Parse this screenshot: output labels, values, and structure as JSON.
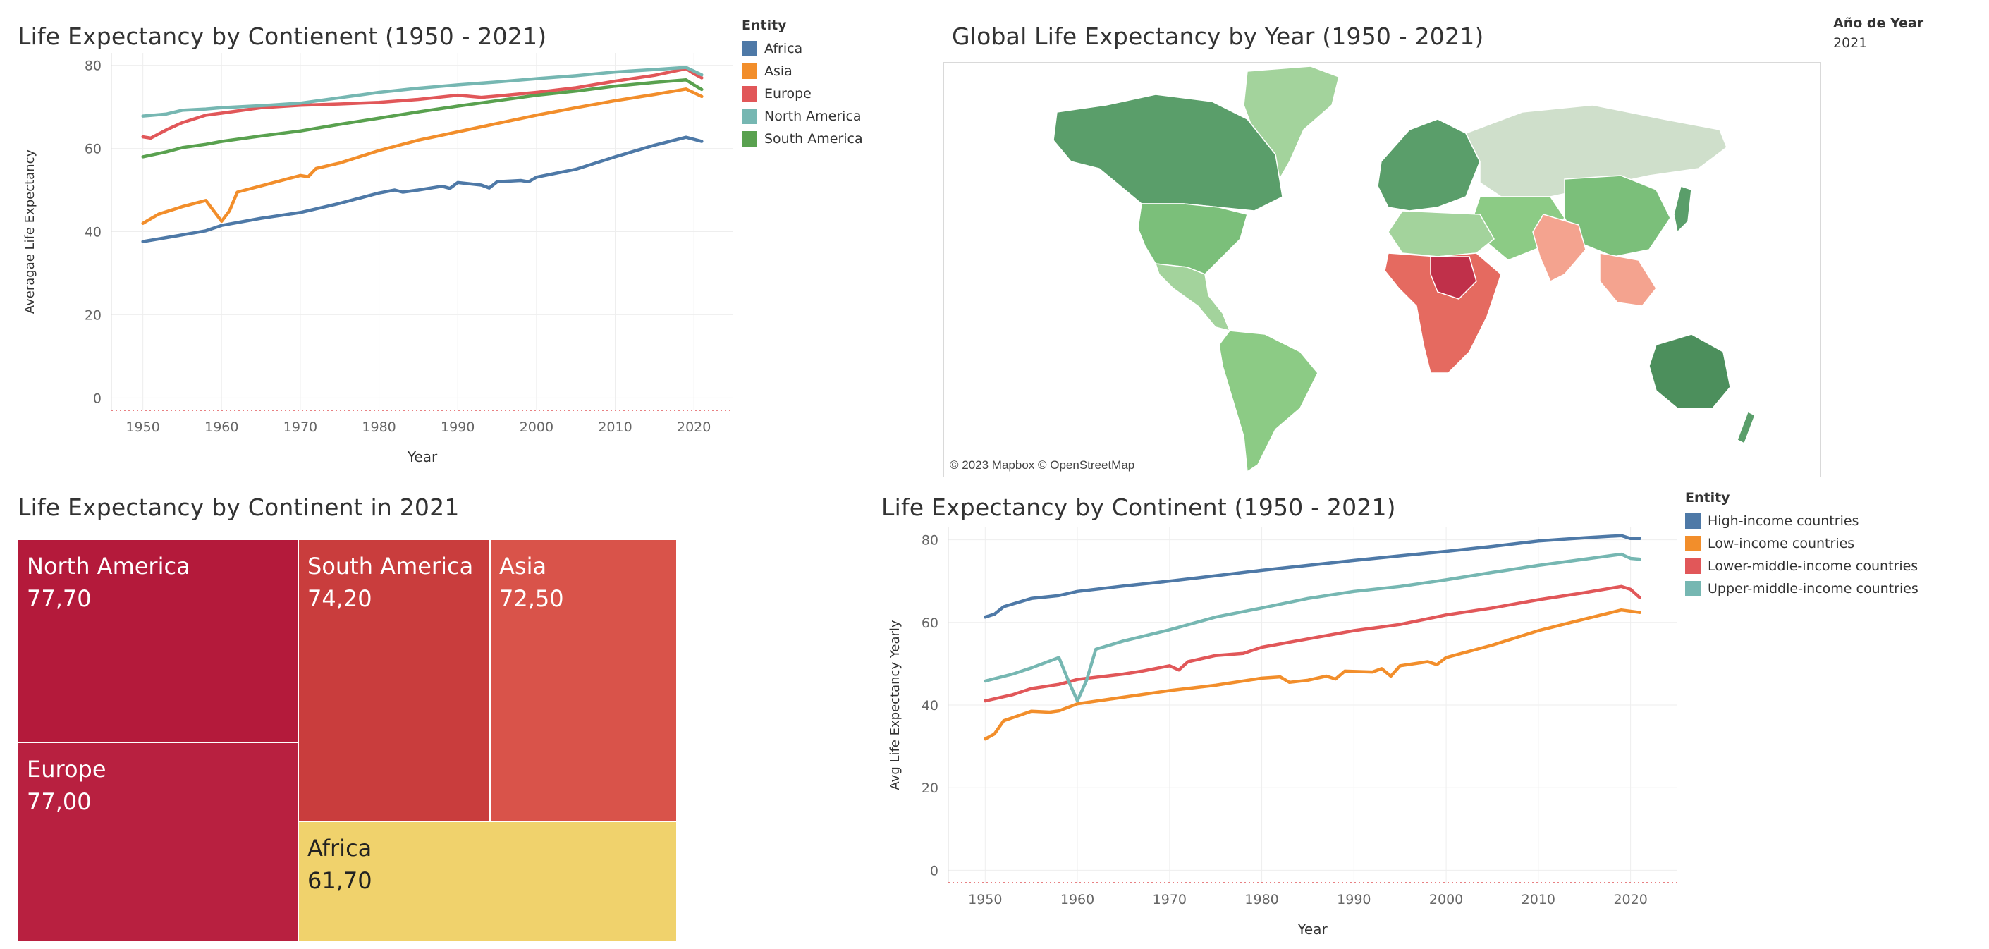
{
  "dashboard": {
    "filter": {
      "label": "Año de Year",
      "value": "2021"
    },
    "map": {
      "title": "Global Life Expectancy by Year (1950 - 2021)",
      "credit": "© 2023 Mapbox © OpenStreetMap"
    }
  },
  "colors": {
    "blue": "#4e79a7",
    "orange": "#f28e2b",
    "red": "#e15759",
    "teal": "#76b7b2",
    "green": "#59a14f",
    "treemap_dark": "#b41a3b",
    "treemap_mid": "#c93d3d",
    "treemap_light": "#d9534a",
    "treemap_yellow": "#f0d26c"
  },
  "chart_data": [
    {
      "id": "continent_lines",
      "type": "line",
      "title": "Life Expectancy by Contienent (1950 - 2021)",
      "xlabel": "Year",
      "ylabel": "Averagae Life Expectancy",
      "xlim": [
        1946,
        2025
      ],
      "ylim": [
        -3,
        83
      ],
      "x_ticks": [
        1950,
        1960,
        1970,
        1980,
        1990,
        2000,
        2010,
        2020
      ],
      "y_ticks": [
        0,
        20,
        40,
        60,
        80
      ],
      "grid": true,
      "legend_title": "Entity",
      "legend_position": "right",
      "series": [
        {
          "name": "Africa",
          "color": "#4e79a7",
          "points": [
            [
              1950,
              37.6
            ],
            [
              1955,
              39.2
            ],
            [
              1958,
              40.2
            ],
            [
              1960,
              41.5
            ],
            [
              1965,
              43.2
            ],
            [
              1970,
              44.6
            ],
            [
              1975,
              46.8
            ],
            [
              1980,
              49.3
            ],
            [
              1982,
              50.0
            ],
            [
              1983,
              49.5
            ],
            [
              1985,
              50.0
            ],
            [
              1988,
              50.9
            ],
            [
              1989,
              50.4
            ],
            [
              1990,
              51.8
            ],
            [
              1993,
              51.2
            ],
            [
              1994,
              50.5
            ],
            [
              1995,
              52.0
            ],
            [
              1998,
              52.3
            ],
            [
              1999,
              52.0
            ],
            [
              2000,
              53.1
            ],
            [
              2005,
              55.0
            ],
            [
              2010,
              58.0
            ],
            [
              2015,
              60.8
            ],
            [
              2019,
              62.7
            ],
            [
              2021,
              61.7
            ]
          ]
        },
        {
          "name": "Asia",
          "color": "#f28e2b",
          "points": [
            [
              1950,
              42.0
            ],
            [
              1952,
              44.2
            ],
            [
              1955,
              46.0
            ],
            [
              1958,
              47.5
            ],
            [
              1960,
              42.5
            ],
            [
              1961,
              45.0
            ],
            [
              1962,
              49.5
            ],
            [
              1965,
              51.0
            ],
            [
              1970,
              53.5
            ],
            [
              1971,
              53.2
            ],
            [
              1972,
              55.2
            ],
            [
              1975,
              56.5
            ],
            [
              1980,
              59.5
            ],
            [
              1985,
              62.0
            ],
            [
              1990,
              64.0
            ],
            [
              1995,
              66.0
            ],
            [
              2000,
              68.0
            ],
            [
              2005,
              69.8
            ],
            [
              2010,
              71.5
            ],
            [
              2015,
              73.0
            ],
            [
              2019,
              74.3
            ],
            [
              2021,
              72.5
            ]
          ]
        },
        {
          "name": "Europe",
          "color": "#e15759",
          "points": [
            [
              1950,
              62.8
            ],
            [
              1951,
              62.5
            ],
            [
              1953,
              64.5
            ],
            [
              1955,
              66.2
            ],
            [
              1958,
              68.0
            ],
            [
              1960,
              68.5
            ],
            [
              1965,
              69.8
            ],
            [
              1970,
              70.4
            ],
            [
              1975,
              70.7
            ],
            [
              1980,
              71.1
            ],
            [
              1985,
              71.8
            ],
            [
              1990,
              72.8
            ],
            [
              1993,
              72.3
            ],
            [
              1995,
              72.6
            ],
            [
              2000,
              73.5
            ],
            [
              2005,
              74.6
            ],
            [
              2010,
              76.2
            ],
            [
              2015,
              77.6
            ],
            [
              2019,
              79.2
            ],
            [
              2020,
              78.0
            ],
            [
              2021,
              77.0
            ]
          ]
        },
        {
          "name": "North America",
          "color": "#76b7b2",
          "points": [
            [
              1950,
              67.8
            ],
            [
              1953,
              68.3
            ],
            [
              1955,
              69.2
            ],
            [
              1958,
              69.5
            ],
            [
              1960,
              69.8
            ],
            [
              1965,
              70.3
            ],
            [
              1970,
              70.9
            ],
            [
              1975,
              72.2
            ],
            [
              1980,
              73.5
            ],
            [
              1985,
              74.5
            ],
            [
              1990,
              75.3
            ],
            [
              1995,
              76.0
            ],
            [
              2000,
              76.8
            ],
            [
              2005,
              77.5
            ],
            [
              2010,
              78.4
            ],
            [
              2015,
              79.0
            ],
            [
              2019,
              79.5
            ],
            [
              2020,
              78.6
            ],
            [
              2021,
              77.7
            ]
          ]
        },
        {
          "name": "South America",
          "color": "#59a14f",
          "points": [
            [
              1950,
              58.0
            ],
            [
              1953,
              59.2
            ],
            [
              1955,
              60.2
            ],
            [
              1958,
              61.0
            ],
            [
              1960,
              61.7
            ],
            [
              1965,
              63.0
            ],
            [
              1970,
              64.2
            ],
            [
              1975,
              65.8
            ],
            [
              1980,
              67.3
            ],
            [
              1985,
              68.8
            ],
            [
              1990,
              70.2
            ],
            [
              1995,
              71.5
            ],
            [
              2000,
              72.8
            ],
            [
              2005,
              73.8
            ],
            [
              2010,
              75.0
            ],
            [
              2015,
              75.9
            ],
            [
              2019,
              76.5
            ],
            [
              2020,
              75.3
            ],
            [
              2021,
              74.2
            ]
          ]
        }
      ]
    },
    {
      "id": "continent_treemap",
      "type": "treemap",
      "title": "Life Expectancy by Continent in 2021",
      "items": [
        {
          "label": "North America",
          "value": "77,70",
          "color": "#b41a3b"
        },
        {
          "label": "Europe",
          "value": "77,00",
          "color": "#b82040"
        },
        {
          "label": "South America",
          "value": "74,20",
          "color": "#c93d3d"
        },
        {
          "label": "Asia",
          "value": "72,50",
          "color": "#d9534a"
        },
        {
          "label": "Africa",
          "value": "61,70",
          "color": "#f0d26c"
        }
      ]
    },
    {
      "id": "income_lines",
      "type": "line",
      "title": "Life Expectancy by Continent (1950 - 2021)",
      "xlabel": "Year",
      "ylabel": "Avg Life Expectancy Yearly",
      "xlim": [
        1946,
        2025
      ],
      "ylim": [
        -3,
        83
      ],
      "x_ticks": [
        1950,
        1960,
        1970,
        1980,
        1990,
        2000,
        2010,
        2020
      ],
      "y_ticks": [
        0,
        20,
        40,
        60,
        80
      ],
      "grid": true,
      "legend_title": "Entity",
      "legend_position": "right",
      "series": [
        {
          "name": "High-income countries",
          "color": "#4e79a7",
          "points": [
            [
              1950,
              61.3
            ],
            [
              1951,
              62.0
            ],
            [
              1952,
              63.8
            ],
            [
              1955,
              65.8
            ],
            [
              1958,
              66.5
            ],
            [
              1960,
              67.5
            ],
            [
              1965,
              68.8
            ],
            [
              1970,
              70.0
            ],
            [
              1975,
              71.3
            ],
            [
              1980,
              72.6
            ],
            [
              1985,
              73.8
            ],
            [
              1990,
              75.0
            ],
            [
              1995,
              76.1
            ],
            [
              2000,
              77.2
            ],
            [
              2005,
              78.4
            ],
            [
              2010,
              79.7
            ],
            [
              2015,
              80.5
            ],
            [
              2019,
              81.0
            ],
            [
              2020,
              80.3
            ],
            [
              2021,
              80.3
            ]
          ]
        },
        {
          "name": "Low-income countries",
          "color": "#f28e2b",
          "points": [
            [
              1950,
              31.8
            ],
            [
              1951,
              33.0
            ],
            [
              1952,
              36.2
            ],
            [
              1955,
              38.5
            ],
            [
              1957,
              38.3
            ],
            [
              1958,
              38.6
            ],
            [
              1960,
              40.3
            ],
            [
              1965,
              41.9
            ],
            [
              1970,
              43.5
            ],
            [
              1975,
              44.8
            ],
            [
              1980,
              46.5
            ],
            [
              1982,
              46.8
            ],
            [
              1983,
              45.5
            ],
            [
              1985,
              46.0
            ],
            [
              1987,
              47.0
            ],
            [
              1988,
              46.3
            ],
            [
              1989,
              48.2
            ],
            [
              1992,
              48.0
            ],
            [
              1993,
              48.8
            ],
            [
              1994,
              47.0
            ],
            [
              1995,
              49.5
            ],
            [
              1998,
              50.5
            ],
            [
              1999,
              49.8
            ],
            [
              2000,
              51.5
            ],
            [
              2005,
              54.5
            ],
            [
              2010,
              58.0
            ],
            [
              2015,
              60.8
            ],
            [
              2019,
              63.0
            ],
            [
              2021,
              62.4
            ]
          ]
        },
        {
          "name": "Lower-middle-income countries",
          "color": "#e15759",
          "points": [
            [
              1950,
              41.0
            ],
            [
              1953,
              42.5
            ],
            [
              1955,
              44.0
            ],
            [
              1958,
              45.0
            ],
            [
              1960,
              46.2
            ],
            [
              1965,
              47.5
            ],
            [
              1967,
              48.2
            ],
            [
              1970,
              49.5
            ],
            [
              1971,
              48.5
            ],
            [
              1972,
              50.5
            ],
            [
              1975,
              52.0
            ],
            [
              1978,
              52.5
            ],
            [
              1980,
              54.0
            ],
            [
              1985,
              56.0
            ],
            [
              1990,
              58.0
            ],
            [
              1995,
              59.5
            ],
            [
              2000,
              61.8
            ],
            [
              2005,
              63.5
            ],
            [
              2010,
              65.5
            ],
            [
              2015,
              67.2
            ],
            [
              2019,
              68.7
            ],
            [
              2020,
              68.0
            ],
            [
              2021,
              66.0
            ]
          ]
        },
        {
          "name": "Upper-middle-income countries",
          "color": "#76b7b2",
          "points": [
            [
              1950,
              45.8
            ],
            [
              1953,
              47.5
            ],
            [
              1955,
              49.0
            ],
            [
              1958,
              51.5
            ],
            [
              1959,
              46.0
            ],
            [
              1960,
              41.0
            ],
            [
              1961,
              46.0
            ],
            [
              1962,
              53.5
            ],
            [
              1965,
              55.5
            ],
            [
              1970,
              58.2
            ],
            [
              1975,
              61.3
            ],
            [
              1980,
              63.5
            ],
            [
              1985,
              65.8
            ],
            [
              1990,
              67.5
            ],
            [
              1995,
              68.7
            ],
            [
              2000,
              70.3
            ],
            [
              2005,
              72.1
            ],
            [
              2010,
              73.8
            ],
            [
              2015,
              75.3
            ],
            [
              2019,
              76.5
            ],
            [
              2020,
              75.5
            ],
            [
              2021,
              75.3
            ]
          ]
        }
      ]
    }
  ]
}
